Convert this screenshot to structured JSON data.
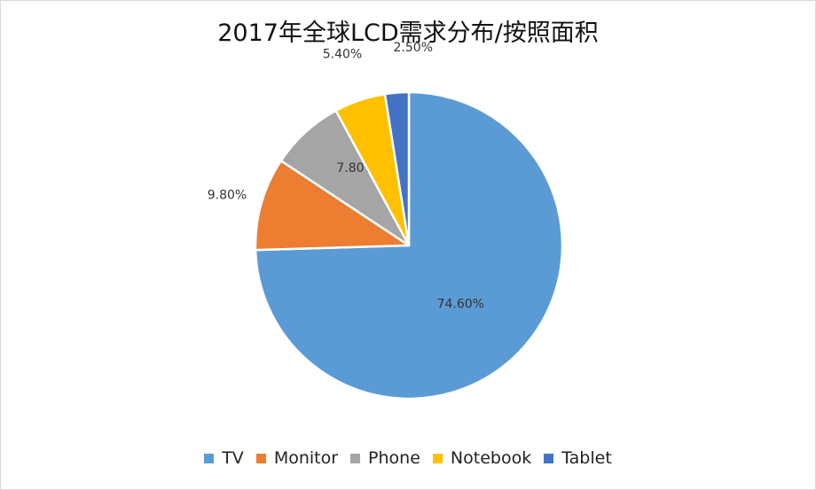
{
  "chart_data": {
    "type": "pie",
    "title": "2017年全球LCD需求分布/按照面积",
    "categories": [
      "TV",
      "Monitor",
      "Phone",
      "Notebook",
      "Tablet"
    ],
    "values": [
      74.6,
      9.8,
      7.8,
      5.4,
      2.5
    ],
    "data_labels": [
      "74.60%",
      "9.80%",
      "7.80%",
      "5.40%",
      "2.50%"
    ],
    "colors": [
      "#5B9BD5",
      "#ED7D31",
      "#A5A5A5",
      "#FFC000",
      "#4472C4"
    ],
    "start_angle": "12 o'clock",
    "direction": "clockwise",
    "legend_position": "bottom"
  }
}
